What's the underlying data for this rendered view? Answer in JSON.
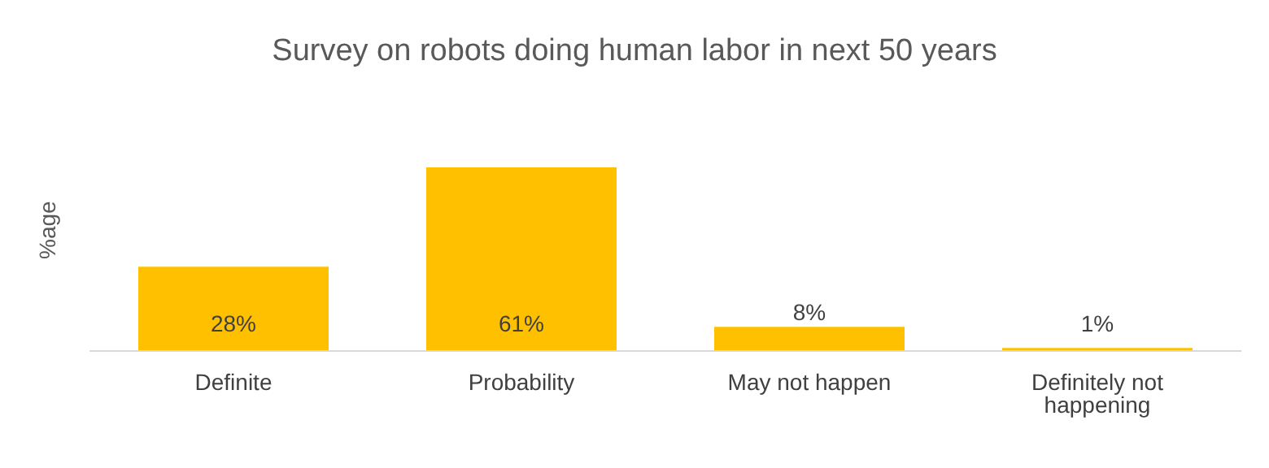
{
  "chart_data": {
    "type": "bar",
    "title": "Survey on robots doing human labor in next 50 years",
    "ylabel": "%age",
    "categories": [
      "Definite",
      "Probability",
      "May not happen",
      "Definitely not happening"
    ],
    "values": [
      28,
      61,
      8,
      1
    ],
    "color": "#ffc000",
    "value_labels": [
      "28%",
      "61%",
      "8%",
      "1%"
    ],
    "grid": false
  }
}
